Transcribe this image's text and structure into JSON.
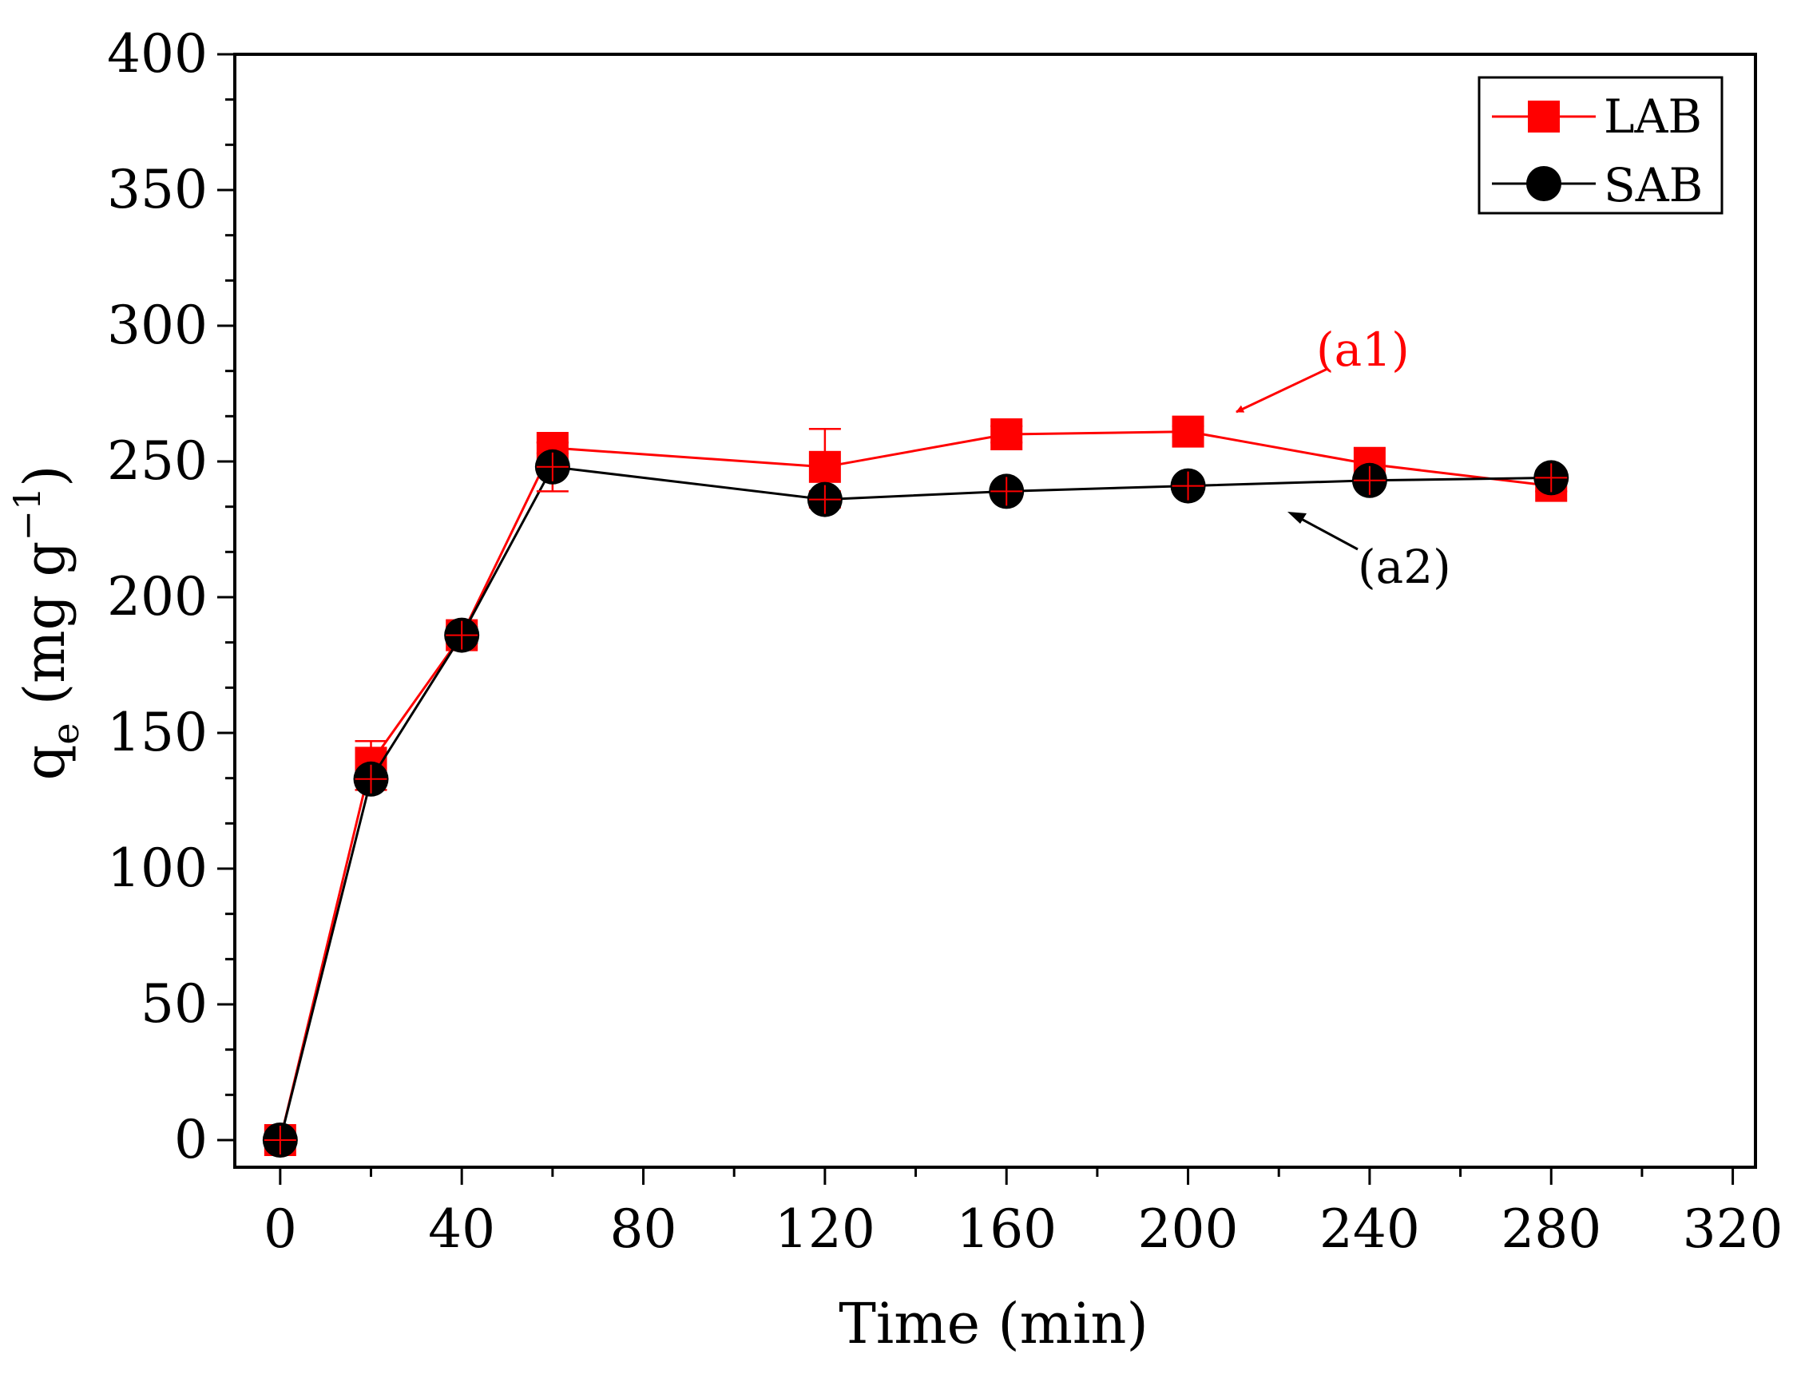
{
  "chart_data": {
    "type": "line",
    "title": "",
    "xlabel": "Time (min)",
    "ylabel": "q_e (mg g^-1)",
    "ylabel_parts": {
      "base": "q",
      "sub": "e",
      "unit_open": " (mg g",
      "sup": "−1",
      "unit_close": ")"
    },
    "xlim": [
      -10,
      325
    ],
    "ylim": [
      -10,
      400
    ],
    "x_ticks": [
      0,
      40,
      80,
      120,
      160,
      200,
      240,
      280,
      320
    ],
    "x_tick_labels": [
      "0",
      "40",
      "80",
      "120",
      "160",
      "200",
      "240",
      "280",
      "320"
    ],
    "y_ticks": [
      0,
      50,
      100,
      150,
      200,
      250,
      300,
      350,
      400
    ],
    "y_tick_labels": [
      "0",
      "50",
      "100",
      "150",
      "200",
      "250",
      "300",
      "350",
      "400"
    ],
    "grid": false,
    "legend_position": "top-right",
    "series": [
      {
        "name": "LAB",
        "color": "#ff0000",
        "marker": "square",
        "x": [
          0,
          20,
          40,
          60,
          120,
          160,
          200,
          240,
          280
        ],
        "y": [
          0,
          139,
          186,
          255,
          248,
          260,
          261,
          249,
          241
        ],
        "err": [
          2,
          8,
          3,
          2,
          14,
          3,
          2,
          6,
          2
        ]
      },
      {
        "name": "SAB",
        "color": "#000000",
        "marker": "circle",
        "x": [
          0,
          20,
          40,
          60,
          120,
          160,
          200,
          240,
          280
        ],
        "y": [
          0,
          133,
          186,
          248,
          236,
          239,
          241,
          243,
          244
        ],
        "err": [
          2,
          4,
          3,
          9,
          3,
          2,
          2,
          2,
          2
        ]
      }
    ],
    "annotations": [
      {
        "text": "(a1)",
        "color": "#ff0000",
        "series": "LAB"
      },
      {
        "text": "(a2)",
        "color": "#000000",
        "series": "SAB"
      }
    ]
  }
}
